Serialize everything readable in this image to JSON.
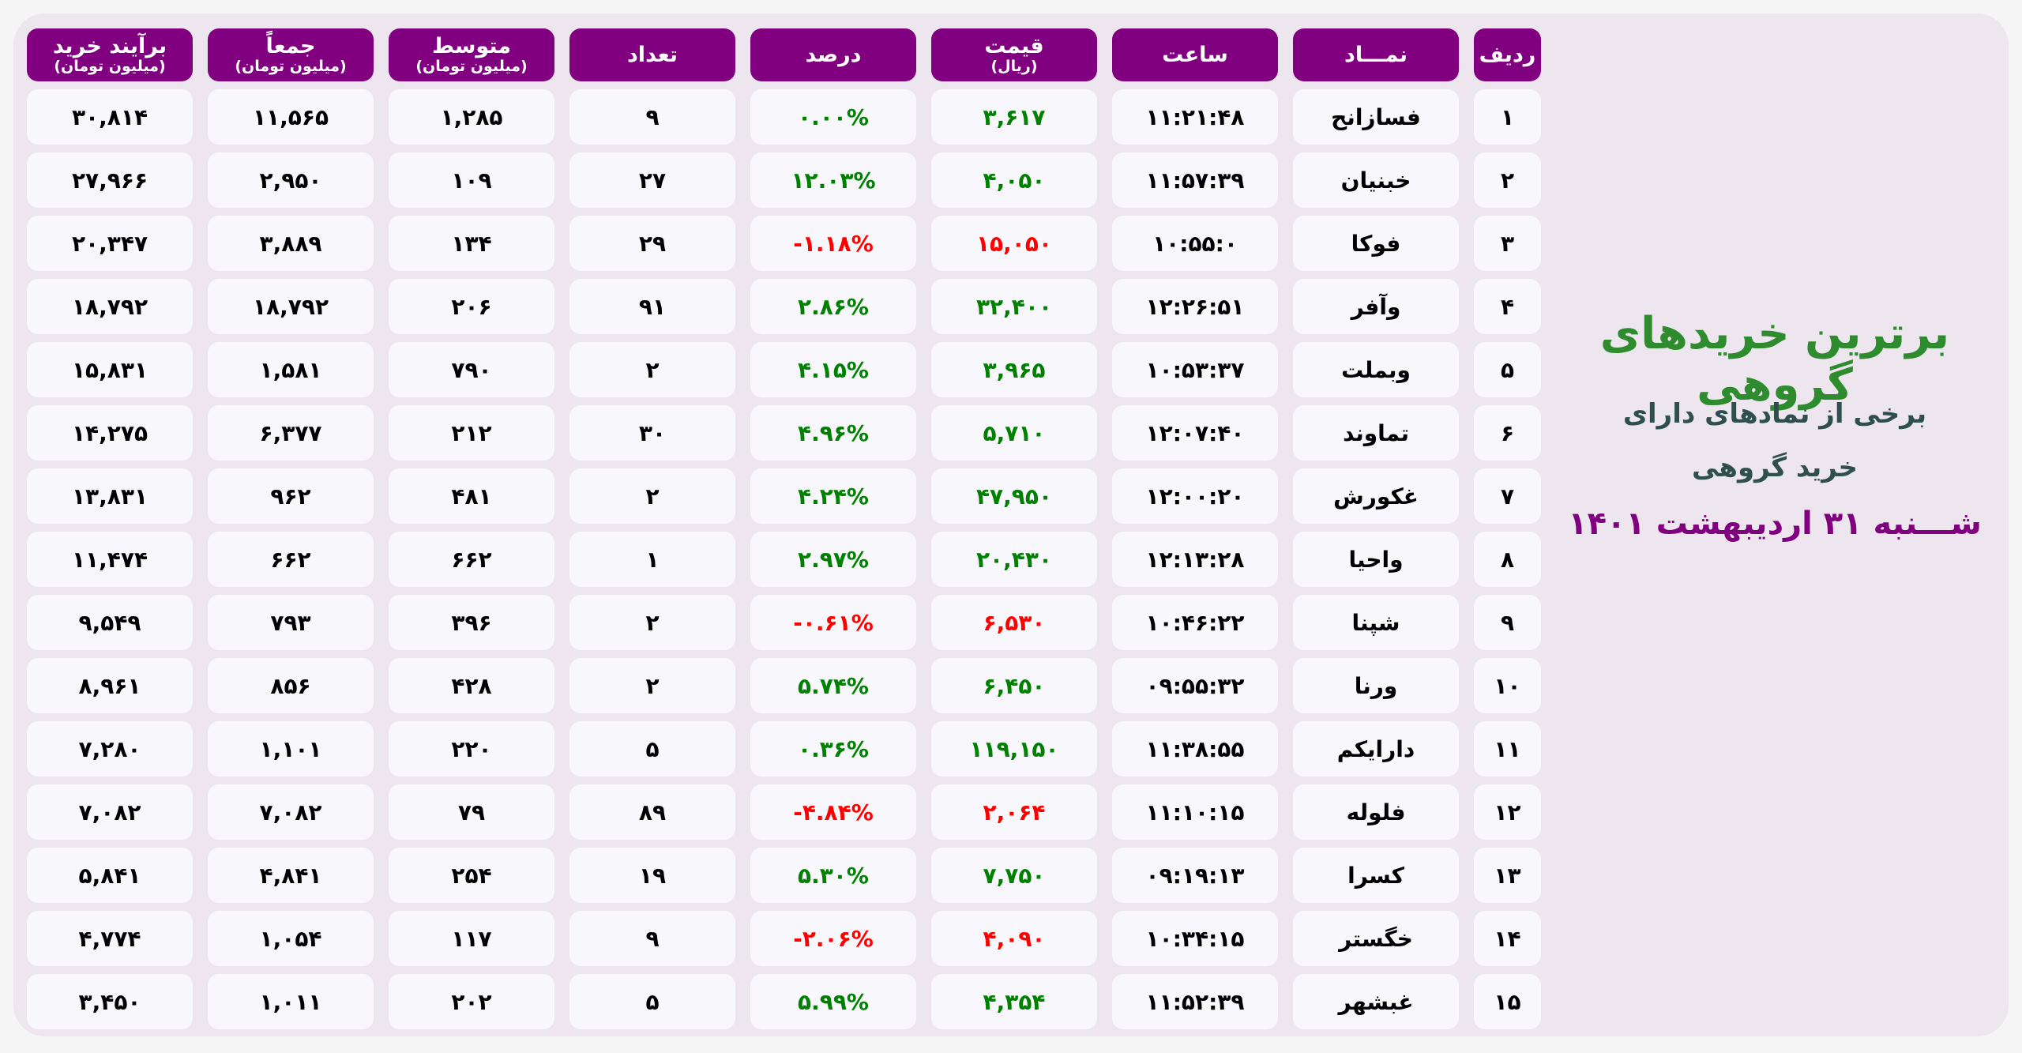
{
  "colors": {
    "header_bg": "#800080",
    "positive": "#008000",
    "negative": "#ff0000",
    "title": "#2e8b2e",
    "subtitle": "#2f4f4f",
    "date": "#800080"
  },
  "side": {
    "title": "برترین خریدهای گروهی",
    "subtitle_line1": "برخی از نمادهای دارای",
    "subtitle_line2": "خرید گروهی",
    "date": "شـــنبه ۳۱ اردیبهشت ۱۴۰۱"
  },
  "headers": [
    {
      "label": "ردیف",
      "sub": ""
    },
    {
      "label": "نمـــاد",
      "sub": ""
    },
    {
      "label": "ساعت",
      "sub": ""
    },
    {
      "label": "قیمت",
      "sub": "(ریال)"
    },
    {
      "label": "درصد",
      "sub": ""
    },
    {
      "label": "تعداد",
      "sub": ""
    },
    {
      "label": "متوسط",
      "sub": "(میلیون تومان)"
    },
    {
      "label": "جمعاً",
      "sub": "(میلیون تومان)"
    },
    {
      "label": "برآیند خرید",
      "sub": "(میلیون تومان)"
    }
  ],
  "rows": [
    {
      "rank": "۱",
      "symbol": "فسازانح",
      "time": "۱۱:۲۱:۴۸",
      "price": "۳,۶۱۷",
      "percent": "۰.۰۰%",
      "trend": "positive",
      "count": "۹",
      "average": "۱,۲۸۵",
      "total": "۱۱,۵۶۵",
      "net_buy": "۳۰,۸۱۴"
    },
    {
      "rank": "۲",
      "symbol": "خبنیان",
      "time": "۱۱:۵۷:۳۹",
      "price": "۴,۰۵۰",
      "percent": "۱۲.۰۳%",
      "trend": "positive",
      "count": "۲۷",
      "average": "۱۰۹",
      "total": "۲,۹۵۰",
      "net_buy": "۲۷,۹۶۶"
    },
    {
      "rank": "۳",
      "symbol": "فوکا",
      "time": "۱۰:۵۵:۰",
      "price": "۱۵,۰۵۰",
      "percent": "-۱.۱۸%",
      "trend": "negative",
      "count": "۲۹",
      "average": "۱۳۴",
      "total": "۳,۸۸۹",
      "net_buy": "۲۰,۳۴۷"
    },
    {
      "rank": "۴",
      "symbol": "وآفر",
      "time": "۱۲:۲۶:۵۱",
      "price": "۳۲,۴۰۰",
      "percent": "۲.۸۶%",
      "trend": "positive",
      "count": "۹۱",
      "average": "۲۰۶",
      "total": "۱۸,۷۹۲",
      "net_buy": "۱۸,۷۹۲"
    },
    {
      "rank": "۵",
      "symbol": "وبملت",
      "time": "۱۰:۵۳:۳۷",
      "price": "۳,۹۶۵",
      "percent": "۴.۱۵%",
      "trend": "positive",
      "count": "۲",
      "average": "۷۹۰",
      "total": "۱,۵۸۱",
      "net_buy": "۱۵,۸۳۱"
    },
    {
      "rank": "۶",
      "symbol": "تماوند",
      "time": "۱۲:۰۷:۴۰",
      "price": "۵,۷۱۰",
      "percent": "۴.۹۶%",
      "trend": "positive",
      "count": "۳۰",
      "average": "۲۱۲",
      "total": "۶,۳۷۷",
      "net_buy": "۱۴,۲۷۵"
    },
    {
      "rank": "۷",
      "symbol": "غکورش",
      "time": "۱۲:۰۰:۲۰",
      "price": "۴۷,۹۵۰",
      "percent": "۴.۲۴%",
      "trend": "positive",
      "count": "۲",
      "average": "۴۸۱",
      "total": "۹۶۲",
      "net_buy": "۱۳,۸۳۱"
    },
    {
      "rank": "۸",
      "symbol": "واحیا",
      "time": "۱۲:۱۳:۲۸",
      "price": "۲۰,۴۳۰",
      "percent": "۲.۹۷%",
      "trend": "positive",
      "count": "۱",
      "average": "۶۶۲",
      "total": "۶۶۲",
      "net_buy": "۱۱,۴۷۴"
    },
    {
      "rank": "۹",
      "symbol": "شپنا",
      "time": "۱۰:۴۶:۲۲",
      "price": "۶,۵۳۰",
      "percent": "-۰.۶۱%",
      "trend": "negative",
      "count": "۲",
      "average": "۳۹۶",
      "total": "۷۹۳",
      "net_buy": "۹,۵۴۹"
    },
    {
      "rank": "۱۰",
      "symbol": "ورنا",
      "time": "۰۹:۵۵:۳۲",
      "price": "۶,۴۵۰",
      "percent": "۵.۷۴%",
      "trend": "positive",
      "count": "۲",
      "average": "۴۲۸",
      "total": "۸۵۶",
      "net_buy": "۸,۹۶۱"
    },
    {
      "rank": "۱۱",
      "symbol": "دارا‌یکم",
      "time": "۱۱:۳۸:۵۵",
      "price": "۱۱۹,۱۵۰",
      "percent": "۰.۳۶%",
      "trend": "positive",
      "count": "۵",
      "average": "۲۲۰",
      "total": "۱,۱۰۱",
      "net_buy": "۷,۲۸۰"
    },
    {
      "rank": "۱۲",
      "symbol": "فلوله",
      "time": "۱۱:۱۰:۱۵",
      "price": "۲,۰۶۴",
      "percent": "-۴.۸۴%",
      "trend": "negative",
      "count": "۸۹",
      "average": "۷۹",
      "total": "۷,۰۸۲",
      "net_buy": "۷,۰۸۲"
    },
    {
      "rank": "۱۳",
      "symbol": "کسرا",
      "time": "۰۹:۱۹:۱۳",
      "price": "۷,۷۵۰",
      "percent": "۵.۳۰%",
      "trend": "positive",
      "count": "۱۹",
      "average": "۲۵۴",
      "total": "۴,۸۴۱",
      "net_buy": "۵,۸۴۱"
    },
    {
      "rank": "۱۴",
      "symbol": "خگستر",
      "time": "۱۰:۳۴:۱۵",
      "price": "۴,۰۹۰",
      "percent": "-۲.۰۶%",
      "trend": "negative",
      "count": "۹",
      "average": "۱۱۷",
      "total": "۱,۰۵۴",
      "net_buy": "۴,۷۷۴"
    },
    {
      "rank": "۱۵",
      "symbol": "غبشهر",
      "time": "۱۱:۵۲:۳۹",
      "price": "۴,۳۵۴",
      "percent": "۵.۹۹%",
      "trend": "positive",
      "count": "۵",
      "average": "۲۰۲",
      "total": "۱,۰۱۱",
      "net_buy": "۳,۴۵۰"
    }
  ]
}
